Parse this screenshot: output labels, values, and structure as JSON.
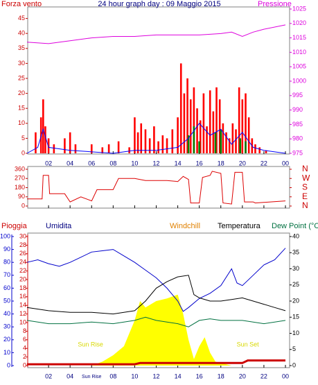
{
  "chart_data": [
    {
      "type": "bar",
      "title": "24 hour graph day : 09 Maggio 2015",
      "ylabel": "Forza vento",
      "y2label": "Pressione",
      "xlim": [
        0,
        24
      ],
      "xticks": [
        {
          "value": 2,
          "label": "02"
        },
        {
          "value": 4,
          "label": "04"
        },
        {
          "value": 6,
          "label": "06"
        },
        {
          "value": 8,
          "label": "08"
        },
        10,
        12,
        14,
        16,
        18,
        20,
        22,
        {
          "value": 24,
          "label": "00"
        }
      ],
      "ylim": [
        0,
        50
      ],
      "yticks": [
        0,
        5,
        10,
        15,
        20,
        25,
        30,
        35,
        40,
        45
      ],
      "y2lim": [
        975,
        1025
      ],
      "y2ticks": [
        975,
        980,
        985,
        990,
        995,
        1000,
        1005,
        1010,
        1015,
        1020,
        1025
      ],
      "series": [
        {
          "type": "bar",
          "color": "#ff0000",
          "x": [
            0.3,
            0.8,
            1.3,
            1.5,
            1.7,
            2.0,
            2.5,
            3.0,
            3.5,
            4.0,
            4.5,
            5.2,
            6.0,
            7.0,
            7.6,
            8.5,
            9.5,
            10.0,
            10.3,
            10.6,
            11.0,
            11.4,
            11.8,
            12.2,
            12.6,
            13.0,
            13.5,
            14.0,
            14.3,
            14.6,
            14.9,
            15.2,
            15.5,
            15.8,
            16.1,
            16.4,
            16.7,
            17.0,
            17.3,
            17.6,
            17.9,
            18.2,
            18.5,
            18.8,
            19.1,
            19.4,
            19.7,
            20.0,
            20.3,
            20.6,
            20.9,
            21.2,
            21.6,
            22.2,
            23.0
          ],
          "values": [
            0,
            7,
            12,
            18,
            9,
            5,
            3,
            0,
            5,
            7,
            3,
            0,
            3,
            2,
            3,
            4,
            2,
            12,
            7,
            10,
            8,
            5,
            9,
            4,
            6,
            5,
            8,
            12,
            30,
            20,
            25,
            18,
            22,
            15,
            11,
            20,
            9,
            21,
            14,
            22,
            18,
            10,
            7,
            5,
            10,
            8,
            22,
            18,
            20,
            12,
            5,
            3,
            2,
            1,
            0
          ]
        },
        {
          "type": "bar",
          "color": "#008000",
          "x": [
            15.0,
            15.5,
            16.0,
            17.5,
            18.0,
            19.8,
            20.3
          ],
          "values": [
            6,
            9,
            4,
            7,
            8,
            5,
            4
          ]
        },
        {
          "type": "line",
          "color": "#0000ff",
          "x": [
            0,
            1,
            1.5,
            2,
            4,
            8,
            10,
            12,
            14,
            15,
            16,
            17,
            18,
            19,
            20,
            21,
            22,
            24
          ],
          "values": [
            0,
            2,
            8,
            2,
            1,
            0,
            1,
            1,
            2,
            5,
            10,
            6,
            8,
            3,
            7,
            2,
            1,
            0
          ]
        },
        {
          "type": "line",
          "color": "#dd00dd",
          "axis": "y2",
          "x": [
            0,
            2,
            4,
            6,
            8,
            10,
            12,
            14,
            16,
            18,
            19,
            20,
            21,
            22,
            24
          ],
          "values": [
            1013.5,
            1013,
            1014,
            1015,
            1015.5,
            1015.5,
            1016,
            1016,
            1016,
            1016.5,
            1017,
            1015.5,
            1017,
            1018,
            1019.5
          ]
        }
      ]
    },
    {
      "type": "line",
      "xlim": [
        0,
        24
      ],
      "xticks": [
        2,
        4,
        6,
        8,
        10,
        12,
        14,
        16,
        18,
        20,
        22,
        24
      ],
      "ylim": [
        0,
        360
      ],
      "yticks": [
        0,
        90,
        180,
        270,
        360
      ],
      "y2lim": [
        0,
        360
      ],
      "y2ticks": [
        {
          "value": 360,
          "label": "N"
        },
        {
          "value": 270,
          "label": "W"
        },
        {
          "value": 180,
          "label": "S"
        },
        {
          "value": 90,
          "label": "E"
        },
        {
          "value": 0,
          "label": "N"
        }
      ],
      "series": [
        {
          "type": "line",
          "color": "#dd0000",
          "x": [
            0,
            1.4,
            1.5,
            2,
            2.1,
            3.5,
            4,
            5,
            6,
            6.5,
            8,
            8.5,
            10,
            11,
            13,
            14,
            14.5,
            15,
            15.2,
            16,
            16.3,
            17,
            17.2,
            18,
            18.2,
            19,
            19.3,
            20,
            20.2,
            21,
            21.2,
            24
          ],
          "values": [
            70,
            70,
            300,
            300,
            120,
            120,
            40,
            90,
            50,
            160,
            160,
            270,
            270,
            250,
            250,
            240,
            290,
            260,
            30,
            30,
            280,
            300,
            340,
            320,
            30,
            20,
            330,
            330,
            40,
            40,
            30,
            50
          ]
        }
      ]
    },
    {
      "type": "line",
      "labels": [
        "Pioggia",
        "Umidita",
        "Windchill",
        "Temperatura",
        "Dew Point (°C"
      ],
      "xlim": [
        0,
        24
      ],
      "xticks": [
        {
          "value": 2,
          "label": "02"
        },
        {
          "value": 4,
          "label": "04"
        },
        {
          "value": 6,
          "label": "Sun Rise"
        },
        {
          "value": 8,
          "label": "08"
        },
        10,
        12,
        14,
        16,
        18,
        20,
        22,
        {
          "value": 24,
          "label": "00"
        }
      ],
      "ylim": [
        0,
        100
      ],
      "yticks": [
        0,
        10,
        20,
        30,
        40,
        50,
        60,
        70,
        80,
        90,
        100
      ],
      "y2lim": [
        0,
        30
      ],
      "y2ticks": [
        0,
        2,
        4,
        6,
        8,
        10,
        12,
        14,
        16,
        18,
        20,
        22,
        24,
        26,
        28,
        30
      ],
      "y3lim": [
        0,
        40
      ],
      "y3ticks": [
        0,
        5,
        10,
        15,
        20,
        25,
        30,
        35,
        40
      ],
      "annotations": [
        {
          "text": "Sun Rise",
          "x": 5.9
        },
        {
          "text": "Sun Set",
          "x": 20.5
        }
      ],
      "series": [
        {
          "type": "area",
          "color": "#ffff00",
          "x": [
            0,
            6,
            7,
            8,
            9,
            10,
            10.5,
            11,
            12,
            13,
            14,
            14.5,
            15,
            15.5,
            16,
            16.5,
            17,
            17.5,
            18,
            19,
            24
          ],
          "values": [
            0,
            0,
            3,
            8,
            15,
            35,
            50,
            45,
            50,
            52,
            55,
            40,
            20,
            5,
            15,
            22,
            10,
            3,
            2,
            0,
            0
          ]
        },
        {
          "type": "line",
          "color": "#0000cc",
          "x": [
            0,
            1,
            2,
            3,
            4,
            5,
            6,
            7,
            8,
            9,
            10,
            11,
            12,
            13,
            14,
            14.5,
            15,
            16,
            17,
            18,
            19,
            19.5,
            20,
            21,
            22,
            23,
            24
          ],
          "values": [
            80,
            82,
            79,
            77,
            80,
            84,
            88,
            89,
            90,
            85,
            80,
            74,
            68,
            60,
            50,
            42,
            45,
            52,
            56,
            62,
            75,
            64,
            62,
            70,
            78,
            82,
            91
          ]
        },
        {
          "type": "line",
          "color": "#000000",
          "axis": "y3",
          "x": [
            0,
            2,
            4,
            6,
            8,
            10,
            11,
            12,
            13,
            14,
            15,
            15.5,
            16,
            17,
            18,
            19,
            20,
            21,
            22,
            23,
            24
          ],
          "values": [
            18,
            17,
            16.5,
            16.5,
            16,
            17,
            20,
            24,
            26,
            27.5,
            28,
            22,
            21,
            20,
            20,
            20.5,
            21,
            20,
            19,
            18,
            17
          ]
        },
        {
          "type": "line",
          "color": "#007040",
          "axis": "y3",
          "x": [
            0,
            2,
            4,
            6,
            8,
            10,
            11,
            12,
            13,
            14,
            15,
            16,
            17,
            18,
            20,
            22,
            24
          ],
          "values": [
            14,
            13,
            13,
            13.5,
            13,
            14,
            15,
            14,
            13.5,
            13,
            12,
            14,
            14.5,
            14,
            14,
            13,
            14
          ]
        },
        {
          "type": "line",
          "color": "#cc0000",
          "axis": "y2",
          "width": 3,
          "x": [
            0,
            10,
            10.5,
            20,
            20.5,
            24
          ],
          "values": [
            0.3,
            0.3,
            0.6,
            0.6,
            1.2,
            1.2
          ]
        }
      ]
    }
  ]
}
